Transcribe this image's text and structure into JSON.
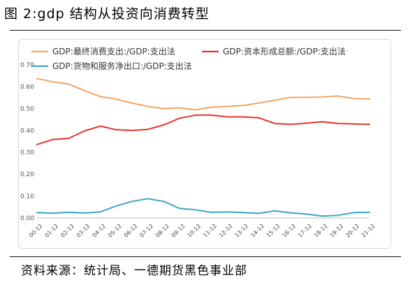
{
  "figure": {
    "title": "图 2:gdp 结构从投资向消费转型",
    "source": "资料来源：统计局、一德期货黑色事业部"
  },
  "chart_data": {
    "type": "line",
    "x": [
      "00-12",
      "01-12",
      "02-12",
      "03-12",
      "04-12",
      "05-12",
      "06-12",
      "07-12",
      "08-12",
      "09-12",
      "10-12",
      "11-12",
      "12-12",
      "13-12",
      "14-12",
      "15-12",
      "16-12",
      "17-12",
      "18-12",
      "19-12",
      "20-12",
      "21-12"
    ],
    "ylim": [
      0,
      0.7
    ],
    "yticks": [
      "0.00",
      "0.10",
      "0.20",
      "0.30",
      "0.40",
      "0.50",
      "0.60",
      "0.70"
    ],
    "grid": false,
    "legend_position": "top",
    "series": [
      {
        "name": "GDP:最终消费支出:/GDP:支出法",
        "color": "#F4A460",
        "values": [
          0.637,
          0.622,
          0.612,
          0.582,
          0.555,
          0.543,
          0.525,
          0.51,
          0.5,
          0.503,
          0.494,
          0.506,
          0.51,
          0.514,
          0.525,
          0.538,
          0.551,
          0.551,
          0.553,
          0.557,
          0.546,
          0.544
        ]
      },
      {
        "name": "GDP:资本形成总额:/GDP:支出法",
        "color": "#E8322B",
        "values": [
          0.336,
          0.359,
          0.364,
          0.398,
          0.42,
          0.403,
          0.4,
          0.405,
          0.425,
          0.456,
          0.47,
          0.47,
          0.462,
          0.462,
          0.458,
          0.432,
          0.428,
          0.433,
          0.44,
          0.432,
          0.43,
          0.428
        ]
      },
      {
        "name": "GDP:货物和服务净出口:/GDP:支出法",
        "color": "#3AA6C4",
        "values": [
          0.025,
          0.022,
          0.026,
          0.023,
          0.028,
          0.055,
          0.076,
          0.088,
          0.076,
          0.044,
          0.038,
          0.026,
          0.028,
          0.025,
          0.021,
          0.033,
          0.024,
          0.018,
          0.009,
          0.012,
          0.025,
          0.026
        ]
      }
    ]
  }
}
